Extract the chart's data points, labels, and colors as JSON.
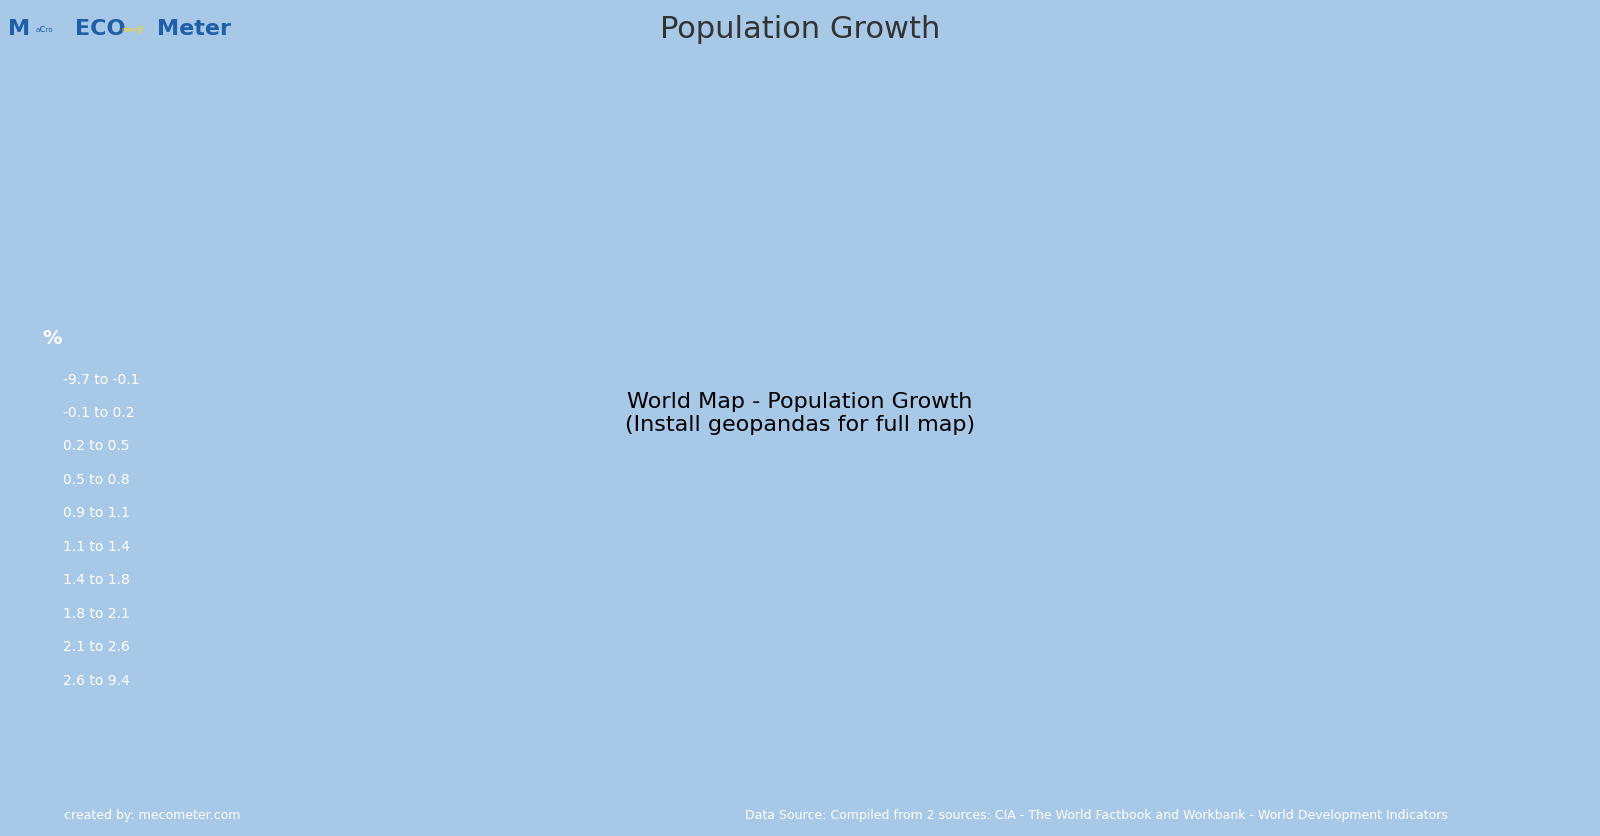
{
  "title": "Population Growth",
  "title_fontsize": 22,
  "title_color": "#333333",
  "background_color": "#a8c8e8",
  "legend_title": "%",
  "legend_items": [
    {
      "label": "-9.7 to -0.1",
      "color": "#4169E1"
    },
    {
      "label": "-0.1 to 0.2",
      "color": "#006400"
    },
    {
      "label": "0.2 to 0.5",
      "color": "#00FF00"
    },
    {
      "label": "0.5 to 0.8",
      "color": "#FF0000"
    },
    {
      "label": "0.9 to 1.1",
      "color": "#8B0000"
    },
    {
      "label": "1.1 to 1.4",
      "color": "#FFB6C1"
    },
    {
      "label": "1.4 to 1.8",
      "color": "#FFA500"
    },
    {
      "label": "1.8 to 2.1",
      "color": "#808080"
    },
    {
      "label": "2.1 to 2.6",
      "color": "#FFD700"
    },
    {
      "label": "2.6 to 9.4",
      "color": "#FFFF00"
    }
  ],
  "footer_left": "created by: mecometer.com",
  "footer_right": "Data Source: Compiled from 2 sources: CIA - The World Factbook and Workbank - World Development Indicators",
  "footer_bg": "#3a7abf",
  "footer_text_color": "#ffffff",
  "logo_text": "M···ECO···Meter",
  "logo_bg": "#a8c8e8",
  "header_bg": "#a8c8e8",
  "map_colors": {
    "USA": "#FF0000",
    "CAN": "#006400",
    "MEX": "#FFA500",
    "GTM": "#808080",
    "BLZ": "#808080",
    "HND": "#808080",
    "SLV": "#808080",
    "NIC": "#FFA500",
    "CRI": "#FFA500",
    "PAN": "#FFA500",
    "CUB": "#FF0000",
    "JAM": "#FFA500",
    "HTI": "#808080",
    "DOM": "#FFA500",
    "PRI": "#FF0000",
    "TTO": "#FFA500",
    "COL": "#FFA500",
    "VEN": "#FFA500",
    "GUY": "#FFA500",
    "SUR": "#FFA500",
    "BRA": "#FF0000",
    "ECU": "#FFA500",
    "PER": "#FFA500",
    "BOL": "#FFA500",
    "PRY": "#FFA500",
    "CHL": "#FF0000",
    "ARG": "#FF0000",
    "URY": "#FF0000",
    "GBR": "#006400",
    "IRL": "#FF0000",
    "ISL": "#FF0000",
    "NOR": "#FF0000",
    "SWE": "#FF0000",
    "FIN": "#FF0000",
    "DNK": "#FF0000",
    "NLD": "#006400",
    "BEL": "#FF0000",
    "LUX": "#FFA500",
    "FRA": "#006400",
    "ESP": "#006400",
    "PRT": "#006400",
    "DEU": "#4169E1",
    "CHE": "#FF0000",
    "AUT": "#006400",
    "ITA": "#006400",
    "MLT": "#006400",
    "POL": "#4169E1",
    "CZE": "#4169E1",
    "SVK": "#006400",
    "HUN": "#4169E1",
    "SVN": "#4169E1",
    "HRV": "#4169E1",
    "BIH": "#4169E1",
    "SRB": "#4169E1",
    "MNE": "#006400",
    "ALB": "#FFA500",
    "MKD": "#006400",
    "GRC": "#4169E1",
    "BGR": "#4169E1",
    "ROU": "#4169E1",
    "MDA": "#4169E1",
    "UKR": "#4169E1",
    "BLR": "#4169E1",
    "LTU": "#4169E1",
    "LVA": "#4169E1",
    "EST": "#4169E1",
    "RUS": "#006400",
    "KAZ": "#FFA500",
    "UZB": "#FFA500",
    "TKM": "#FFA500",
    "KGZ": "#FFA500",
    "TJK": "#808080",
    "MNG": "#FFA500",
    "CHN": "#00FF00",
    "KOR": "#006400",
    "PRK": "#8B0000",
    "JPN": "#4169E1",
    "TWN": "#006400",
    "PHL": "#808080",
    "VNM": "#FF0000",
    "LAO": "#808080",
    "KHM": "#FFA500",
    "THA": "#FF0000",
    "MMR": "#FF0000",
    "BGD": "#FFA500",
    "IND": "#FFB6C1",
    "PAK": "#808080",
    "AFG": "#808080",
    "IRN": "#FF0000",
    "IRQ": "#FFD700",
    "SYR": "#FFD700",
    "TUR": "#FFA500",
    "SAU": "#808080",
    "YEM": "#FFFF00",
    "OMN": "#808080",
    "ARE": "#FFA500",
    "QAT": "#FFA500",
    "KWT": "#FFA500",
    "BHR": "#FFA500",
    "JOR": "#808080",
    "ISR": "#FFA500",
    "LBN": "#FFA500",
    "EGY": "#FFA500",
    "LBY": "#808080",
    "TUN": "#FFA500",
    "DZA": "#808080",
    "MAR": "#FFA500",
    "MRT": "#FFD700",
    "SEN": "#FFD700",
    "GMB": "#FFD700",
    "GNB": "#FFD700",
    "GIN": "#FFD700",
    "SLE": "#FFD700",
    "LBR": "#FFD700",
    "CIV": "#FFD700",
    "GHA": "#FFD700",
    "TGO": "#FFD700",
    "BEN": "#FFD700",
    "NGA": "#FFD700",
    "NER": "#FFFF00",
    "BFA": "#FFD700",
    "MLI": "#FFD700",
    "TCD": "#FFD700",
    "SDN": "#FFD700",
    "ETH": "#FFD700",
    "ERI": "#FFA500",
    "DJI": "#FFD700",
    "SOM": "#FFFF00",
    "KEN": "#FFD700",
    "UGA": "#FFFF00",
    "RWA": "#FFD700",
    "BDI": "#FFD700",
    "TZA": "#FFD700",
    "MOZ": "#FFD700",
    "MWI": "#FFD700",
    "ZMB": "#FFD700",
    "ZWE": "#808080",
    "BWA": "#808080",
    "NAM": "#FFA500",
    "ZAF": "#4169E1",
    "LSO": "#FFA500",
    "SWZ": "#FFA500",
    "MDG": "#FFA500",
    "CMR": "#FFD700",
    "CAF": "#FFD700",
    "COG": "#FFA500",
    "COD": "#FFFF00",
    "GAB": "#FFA500",
    "GNQ": "#808080",
    "AGO": "#FFFF00",
    "AUS": "#FFB6C1",
    "NZL": "#FF0000",
    "PNG": "#808080",
    "IDN": "#FFA500",
    "MYS": "#FFA500",
    "BRN": "#FFA500",
    "SGP": "#4169E1",
    "SSD": "#FFFF00",
    "ARM": "#4169E1",
    "GEO": "#4169E1",
    "AZE": "#FFA500",
    "NPL": "#FFA500",
    "BTN": "#FFA500",
    "LKA": "#FF0000",
    "MDV": "#FFA500",
    "FSM": "#FFA500",
    "FJI": "#FFA500",
    "WSM": "#FFA500",
    "TON": "#FFA500",
    "VUT": "#FFD700",
    "SLB": "#FFD700",
    "KIR": "#FFD700",
    "PLW": "#FFA500",
    "MHL": "#FFD700",
    "NRU": "#FFD700",
    "TUV": "#FFD700",
    "CPV": "#FFA500",
    "STP": "#FFD700",
    "COM": "#FFD700",
    "MUS": "#FF0000",
    "SYC": "#FFA500",
    "PSE": "#FFFF00",
    "CYP": "#FF0000",
    "GUM": "#FFD700",
    "NCL": "#FFA500",
    "PYF": "#FFA500",
    "HKG": "#006400",
    "MAC": "#006400",
    "KOS": "#FFA500"
  }
}
